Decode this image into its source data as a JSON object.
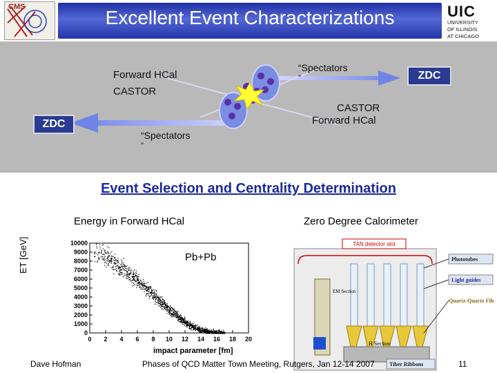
{
  "header": {
    "title": "Excellent Event Characterizations",
    "logo_left": "CMS",
    "logo_right": "UIC",
    "logo_right_sub": [
      "UNIVERSITY",
      "OF ILLINOIS",
      "AT CHICAGO"
    ]
  },
  "collision": {
    "left_detector_top": "Forward HCal",
    "left_detector_bottom": "CASTOR",
    "spectators_top": "“Spectators",
    "spectators_top_quote": "”",
    "zdc_right": "ZDC",
    "right_detector_top": "CASTOR",
    "right_detector_bottom": "Forward HCal",
    "zdc_left": "ZDC",
    "spectators_bottom": "“Spectators",
    "spectators_bottom_quote": "”"
  },
  "section_heading": "Event Selection and Centrality Determination",
  "left_figure": {
    "caption": "Energy in Forward HCal",
    "ylabel": "ET [GeV]",
    "xlabel": "impact parameter [fm]",
    "annotation": "Pb+Pb"
  },
  "chart_data": {
    "type": "scatter",
    "title": "Energy in Forward HCal",
    "xlabel": "impact parameter [fm]",
    "ylabel": "ET [GeV]",
    "annotation": "Pb+Pb",
    "xlim": [
      0,
      20
    ],
    "ylim": [
      0,
      10000
    ],
    "xticks": [
      0,
      2,
      4,
      6,
      8,
      10,
      12,
      14,
      16,
      18,
      20
    ],
    "yticks": [
      0,
      1000,
      2000,
      3000,
      4000,
      5000,
      6000,
      7000,
      8000,
      9000,
      10000
    ],
    "trend": {
      "x": [
        0,
        1,
        2,
        3,
        4,
        5,
        6,
        7,
        8,
        9,
        10,
        11,
        12,
        13,
        14,
        15,
        16,
        17
      ],
      "y": [
        9200,
        8900,
        8500,
        7900,
        7300,
        6600,
        5800,
        5000,
        4200,
        3400,
        2600,
        1900,
        1200,
        700,
        350,
        150,
        60,
        20
      ]
    }
  },
  "right_figure": {
    "caption": "Zero Degree Calorimeter",
    "slot_label": "TAN detector slot",
    "labels": [
      "Phototubes",
      "Light guides",
      "Quartz-Quartz Fibers",
      "Tiber Ribbons",
      "H Section",
      "EM Section"
    ]
  },
  "footer": {
    "author": "Dave Hofman",
    "event": "Phases of QCD Matter Town Meeting, Rutgers, Jan 12-14 2007",
    "page": "11"
  },
  "colors": {
    "title_bar": "#2b3ba8",
    "zdc_box": "#2b3b8f",
    "heading": "#1b2a9c",
    "panel": "#b9b9b9"
  }
}
